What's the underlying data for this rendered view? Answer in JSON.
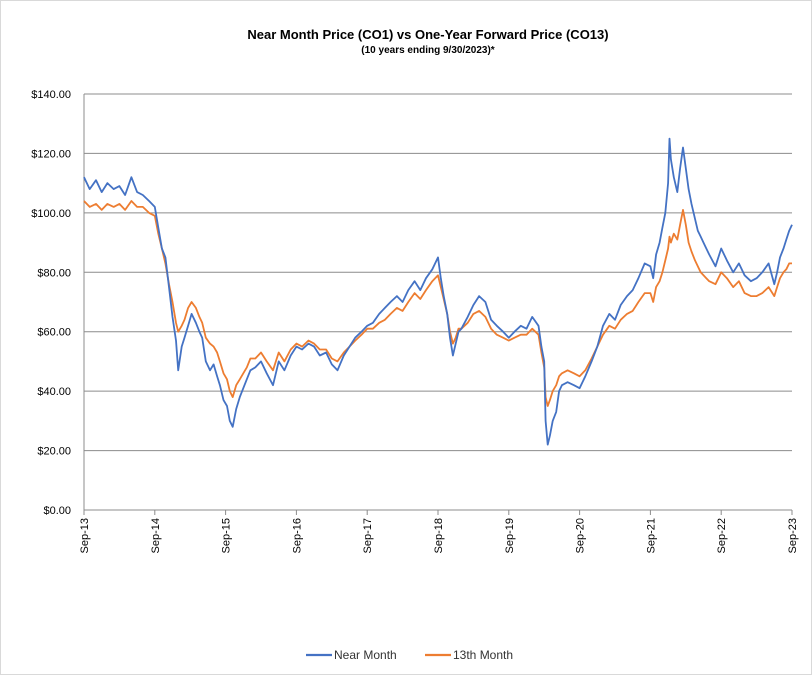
{
  "chart_data": {
    "type": "line",
    "title": "Near Month Price (CO1) vs One-Year Forward Price  (CO13)",
    "subtitle": "(10 years ending  9/30/2023)*",
    "xlabel": "",
    "ylabel": "",
    "ylim": [
      0,
      140
    ],
    "y_ticks": [
      "$0.00",
      "$20.00",
      "$40.00",
      "$60.00",
      "$80.00",
      "$100.00",
      "$120.00",
      "$140.00"
    ],
    "x_ticks": [
      "Sep-13",
      "Sep-14",
      "Sep-15",
      "Sep-16",
      "Sep-17",
      "Sep-18",
      "Sep-19",
      "Sep-20",
      "Sep-21",
      "Sep-22",
      "Sep-23"
    ],
    "grid": "horizontal",
    "legend_position": "bottom",
    "x_unit": "years since Sep-13",
    "series": [
      {
        "name": "Near Month",
        "color": "#4472C4",
        "points": [
          [
            0.0,
            112
          ],
          [
            0.08,
            108
          ],
          [
            0.17,
            111
          ],
          [
            0.25,
            107
          ],
          [
            0.33,
            110
          ],
          [
            0.42,
            108
          ],
          [
            0.5,
            109
          ],
          [
            0.58,
            106
          ],
          [
            0.67,
            112
          ],
          [
            0.75,
            107
          ],
          [
            0.83,
            106
          ],
          [
            0.92,
            104
          ],
          [
            1.0,
            102
          ],
          [
            1.05,
            95
          ],
          [
            1.1,
            88
          ],
          [
            1.15,
            85
          ],
          [
            1.2,
            75
          ],
          [
            1.25,
            65
          ],
          [
            1.3,
            57
          ],
          [
            1.33,
            47
          ],
          [
            1.38,
            55
          ],
          [
            1.42,
            58
          ],
          [
            1.47,
            62
          ],
          [
            1.52,
            66
          ],
          [
            1.58,
            63
          ],
          [
            1.63,
            60
          ],
          [
            1.67,
            58
          ],
          [
            1.72,
            50
          ],
          [
            1.78,
            47
          ],
          [
            1.83,
            49
          ],
          [
            1.88,
            45
          ],
          [
            1.92,
            42
          ],
          [
            1.97,
            37
          ],
          [
            2.02,
            35
          ],
          [
            2.06,
            30
          ],
          [
            2.1,
            28
          ],
          [
            2.15,
            34
          ],
          [
            2.2,
            38
          ],
          [
            2.25,
            41
          ],
          [
            2.3,
            44
          ],
          [
            2.35,
            47
          ],
          [
            2.42,
            48
          ],
          [
            2.5,
            50
          ],
          [
            2.58,
            46
          ],
          [
            2.67,
            42
          ],
          [
            2.75,
            50
          ],
          [
            2.83,
            47
          ],
          [
            2.92,
            52
          ],
          [
            3.0,
            55
          ],
          [
            3.08,
            54
          ],
          [
            3.17,
            56
          ],
          [
            3.25,
            55
          ],
          [
            3.33,
            52
          ],
          [
            3.42,
            53
          ],
          [
            3.5,
            49
          ],
          [
            3.58,
            47
          ],
          [
            3.67,
            52
          ],
          [
            3.75,
            55
          ],
          [
            3.83,
            58
          ],
          [
            3.92,
            60
          ],
          [
            4.0,
            62
          ],
          [
            4.08,
            63
          ],
          [
            4.17,
            66
          ],
          [
            4.25,
            68
          ],
          [
            4.33,
            70
          ],
          [
            4.42,
            72
          ],
          [
            4.5,
            70
          ],
          [
            4.58,
            74
          ],
          [
            4.67,
            77
          ],
          [
            4.75,
            74
          ],
          [
            4.83,
            78
          ],
          [
            4.92,
            81
          ],
          [
            5.0,
            85
          ],
          [
            5.04,
            78
          ],
          [
            5.08,
            72
          ],
          [
            5.13,
            66
          ],
          [
            5.17,
            58
          ],
          [
            5.21,
            52
          ],
          [
            5.25,
            56
          ],
          [
            5.29,
            60
          ],
          [
            5.33,
            61
          ],
          [
            5.42,
            65
          ],
          [
            5.5,
            69
          ],
          [
            5.58,
            72
          ],
          [
            5.67,
            70
          ],
          [
            5.75,
            64
          ],
          [
            5.83,
            62
          ],
          [
            5.92,
            60
          ],
          [
            6.0,
            58
          ],
          [
            6.08,
            60
          ],
          [
            6.17,
            62
          ],
          [
            6.25,
            61
          ],
          [
            6.33,
            65
          ],
          [
            6.42,
            62
          ],
          [
            6.46,
            55
          ],
          [
            6.5,
            50
          ],
          [
            6.52,
            30
          ],
          [
            6.55,
            22
          ],
          [
            6.58,
            25
          ],
          [
            6.62,
            30
          ],
          [
            6.67,
            33
          ],
          [
            6.71,
            40
          ],
          [
            6.75,
            42
          ],
          [
            6.83,
            43
          ],
          [
            6.92,
            42
          ],
          [
            7.0,
            41
          ],
          [
            7.08,
            45
          ],
          [
            7.17,
            50
          ],
          [
            7.25,
            55
          ],
          [
            7.33,
            62
          ],
          [
            7.42,
            66
          ],
          [
            7.5,
            64
          ],
          [
            7.58,
            69
          ],
          [
            7.67,
            72
          ],
          [
            7.75,
            74
          ],
          [
            7.83,
            78
          ],
          [
            7.92,
            83
          ],
          [
            8.0,
            82
          ],
          [
            8.04,
            78
          ],
          [
            8.08,
            86
          ],
          [
            8.13,
            90
          ],
          [
            8.17,
            95
          ],
          [
            8.21,
            100
          ],
          [
            8.25,
            110
          ],
          [
            8.27,
            125
          ],
          [
            8.29,
            118
          ],
          [
            8.33,
            112
          ],
          [
            8.38,
            107
          ],
          [
            8.42,
            115
          ],
          [
            8.46,
            122
          ],
          [
            8.5,
            115
          ],
          [
            8.54,
            108
          ],
          [
            8.58,
            103
          ],
          [
            8.63,
            98
          ],
          [
            8.67,
            94
          ],
          [
            8.71,
            92
          ],
          [
            8.75,
            90
          ],
          [
            8.79,
            88
          ],
          [
            8.83,
            86
          ],
          [
            8.92,
            82
          ],
          [
            9.0,
            88
          ],
          [
            9.08,
            84
          ],
          [
            9.17,
            80
          ],
          [
            9.25,
            83
          ],
          [
            9.33,
            79
          ],
          [
            9.42,
            77
          ],
          [
            9.5,
            78
          ],
          [
            9.58,
            80
          ],
          [
            9.67,
            83
          ],
          [
            9.75,
            76
          ],
          [
            9.79,
            80
          ],
          [
            9.83,
            85
          ],
          [
            9.88,
            88
          ],
          [
            9.92,
            91
          ],
          [
            9.96,
            94
          ],
          [
            10.0,
            96
          ]
        ]
      },
      {
        "name": "13th Month",
        "color": "#ED7D31",
        "points": [
          [
            0.0,
            104
          ],
          [
            0.08,
            102
          ],
          [
            0.17,
            103
          ],
          [
            0.25,
            101
          ],
          [
            0.33,
            103
          ],
          [
            0.42,
            102
          ],
          [
            0.5,
            103
          ],
          [
            0.58,
            101
          ],
          [
            0.67,
            104
          ],
          [
            0.75,
            102
          ],
          [
            0.83,
            102
          ],
          [
            0.92,
            100
          ],
          [
            1.0,
            99
          ],
          [
            1.05,
            93
          ],
          [
            1.1,
            88
          ],
          [
            1.15,
            83
          ],
          [
            1.2,
            76
          ],
          [
            1.25,
            70
          ],
          [
            1.3,
            63
          ],
          [
            1.33,
            60
          ],
          [
            1.38,
            62
          ],
          [
            1.42,
            64
          ],
          [
            1.47,
            68
          ],
          [
            1.52,
            70
          ],
          [
            1.58,
            68
          ],
          [
            1.63,
            65
          ],
          [
            1.67,
            63
          ],
          [
            1.72,
            58
          ],
          [
            1.78,
            56
          ],
          [
            1.83,
            55
          ],
          [
            1.88,
            53
          ],
          [
            1.92,
            50
          ],
          [
            1.97,
            46
          ],
          [
            2.02,
            44
          ],
          [
            2.06,
            40
          ],
          [
            2.1,
            38
          ],
          [
            2.15,
            42
          ],
          [
            2.2,
            44
          ],
          [
            2.25,
            46
          ],
          [
            2.3,
            48
          ],
          [
            2.35,
            51
          ],
          [
            2.42,
            51
          ],
          [
            2.5,
            53
          ],
          [
            2.58,
            50
          ],
          [
            2.67,
            47
          ],
          [
            2.75,
            53
          ],
          [
            2.83,
            50
          ],
          [
            2.92,
            54
          ],
          [
            3.0,
            56
          ],
          [
            3.08,
            55
          ],
          [
            3.17,
            57
          ],
          [
            3.25,
            56
          ],
          [
            3.33,
            54
          ],
          [
            3.42,
            54
          ],
          [
            3.5,
            51
          ],
          [
            3.58,
            50
          ],
          [
            3.67,
            53
          ],
          [
            3.75,
            55
          ],
          [
            3.83,
            57
          ],
          [
            3.92,
            59
          ],
          [
            4.0,
            61
          ],
          [
            4.08,
            61
          ],
          [
            4.17,
            63
          ],
          [
            4.25,
            64
          ],
          [
            4.33,
            66
          ],
          [
            4.42,
            68
          ],
          [
            4.5,
            67
          ],
          [
            4.58,
            70
          ],
          [
            4.67,
            73
          ],
          [
            4.75,
            71
          ],
          [
            4.83,
            74
          ],
          [
            4.92,
            77
          ],
          [
            5.0,
            79
          ],
          [
            5.04,
            75
          ],
          [
            5.08,
            71
          ],
          [
            5.13,
            66
          ],
          [
            5.17,
            60
          ],
          [
            5.21,
            56
          ],
          [
            5.25,
            58
          ],
          [
            5.29,
            61
          ],
          [
            5.33,
            61
          ],
          [
            5.42,
            63
          ],
          [
            5.5,
            66
          ],
          [
            5.58,
            67
          ],
          [
            5.67,
            65
          ],
          [
            5.75,
            61
          ],
          [
            5.83,
            59
          ],
          [
            5.92,
            58
          ],
          [
            6.0,
            57
          ],
          [
            6.08,
            58
          ],
          [
            6.17,
            59
          ],
          [
            6.25,
            59
          ],
          [
            6.33,
            61
          ],
          [
            6.42,
            59
          ],
          [
            6.46,
            53
          ],
          [
            6.5,
            48
          ],
          [
            6.52,
            38
          ],
          [
            6.55,
            35
          ],
          [
            6.58,
            37
          ],
          [
            6.62,
            40
          ],
          [
            6.67,
            42
          ],
          [
            6.71,
            45
          ],
          [
            6.75,
            46
          ],
          [
            6.83,
            47
          ],
          [
            6.92,
            46
          ],
          [
            7.0,
            45
          ],
          [
            7.08,
            47
          ],
          [
            7.17,
            51
          ],
          [
            7.25,
            55
          ],
          [
            7.33,
            59
          ],
          [
            7.42,
            62
          ],
          [
            7.5,
            61
          ],
          [
            7.58,
            64
          ],
          [
            7.67,
            66
          ],
          [
            7.75,
            67
          ],
          [
            7.83,
            70
          ],
          [
            7.92,
            73
          ],
          [
            8.0,
            73
          ],
          [
            8.04,
            70
          ],
          [
            8.08,
            75
          ],
          [
            8.13,
            77
          ],
          [
            8.17,
            80
          ],
          [
            8.21,
            84
          ],
          [
            8.25,
            88
          ],
          [
            8.27,
            92
          ],
          [
            8.29,
            90
          ],
          [
            8.33,
            93
          ],
          [
            8.38,
            91
          ],
          [
            8.42,
            96
          ],
          [
            8.46,
            101
          ],
          [
            8.5,
            96
          ],
          [
            8.54,
            90
          ],
          [
            8.58,
            87
          ],
          [
            8.63,
            84
          ],
          [
            8.67,
            82
          ],
          [
            8.71,
            80
          ],
          [
            8.75,
            79
          ],
          [
            8.79,
            78
          ],
          [
            8.83,
            77
          ],
          [
            8.92,
            76
          ],
          [
            9.0,
            80
          ],
          [
            9.08,
            78
          ],
          [
            9.17,
            75
          ],
          [
            9.25,
            77
          ],
          [
            9.33,
            73
          ],
          [
            9.42,
            72
          ],
          [
            9.5,
            72
          ],
          [
            9.58,
            73
          ],
          [
            9.67,
            75
          ],
          [
            9.75,
            72
          ],
          [
            9.79,
            75
          ],
          [
            9.83,
            78
          ],
          [
            9.88,
            80
          ],
          [
            9.92,
            81
          ],
          [
            9.96,
            83
          ],
          [
            10.0,
            83
          ]
        ]
      }
    ]
  }
}
